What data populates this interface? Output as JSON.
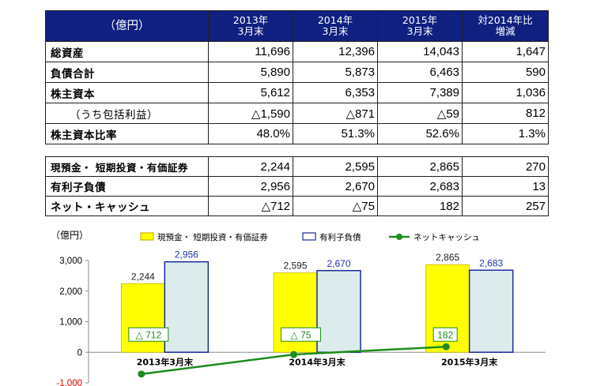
{
  "table1": {
    "header": {
      "unit": "（億円）",
      "col1": [
        "2013年",
        "3月末"
      ],
      "col2": [
        "2014年",
        "3月末"
      ],
      "col3": [
        "2015年",
        "3月末"
      ],
      "col4": [
        "対2014年比",
        "増減"
      ]
    },
    "rows": [
      {
        "label": "総資産",
        "v1": "11,696",
        "v2": "12,396",
        "v3": "14,043",
        "v4": "1,647"
      },
      {
        "label": "負債合計",
        "v1": "5,890",
        "v2": "5,873",
        "v3": "6,463",
        "v4": "590"
      },
      {
        "label": "株主資本",
        "v1": "5,612",
        "v2": "6,353",
        "v3": "7,389",
        "v4": "1,036"
      },
      {
        "label": "（うち包括利益）",
        "v1": "△1,590",
        "v2": "△871",
        "v3": "△59",
        "v4": "812"
      },
      {
        "label": "株主資本比率",
        "v1": "48.0%",
        "v2": "51.3%",
        "v3": "52.6%",
        "v4": "1.3%"
      }
    ]
  },
  "table2": {
    "rows": [
      {
        "label": "現預金・ 短期投資・有価証券",
        "v1": "2,244",
        "v2": "2,595",
        "v3": "2,865",
        "v4": "270"
      },
      {
        "label": "有利子負債",
        "v1": "2,956",
        "v2": "2,670",
        "v3": "2,683",
        "v4": "13"
      },
      {
        "label": "ネット・キャッシュ",
        "v1": "△712",
        "v2": "△75",
        "v3": "182",
        "v4": "257"
      }
    ]
  },
  "chart_data": {
    "type": "bar",
    "ylabel": "（億円）",
    "categories": [
      "2013年3月末",
      "2014年3月末",
      "2015年3月末"
    ],
    "ylim": [
      -1000,
      3000
    ],
    "yticks": [
      -1000,
      0,
      1000,
      2000,
      3000
    ],
    "ytick_labels": [
      "-1,000",
      "0",
      "1,000",
      "2,000",
      "3,000"
    ],
    "legend_position": "top",
    "series": [
      {
        "name": "現預金・ 短期投資・有価証券",
        "kind": "bar",
        "values": [
          2244,
          2595,
          2865
        ],
        "labels": [
          "2,244",
          "2,595",
          "2,865"
        ],
        "fill": "#ffff00",
        "stroke": "#c8b400",
        "label_color": "#222222"
      },
      {
        "name": "有利子負債",
        "kind": "bar",
        "values": [
          2956,
          2670,
          2683
        ],
        "labels": [
          "2,956",
          "2,670",
          "2,683"
        ],
        "fill": "#dcecec",
        "stroke": "#1a2aa0",
        "label_color": "#2233aa"
      },
      {
        "name": "ネットキャッシュ",
        "kind": "line",
        "values": [
          -712,
          -75,
          182
        ],
        "labels": [
          "△ 712",
          "△ 75",
          "182"
        ],
        "color": "#1e8c1e"
      }
    ]
  }
}
